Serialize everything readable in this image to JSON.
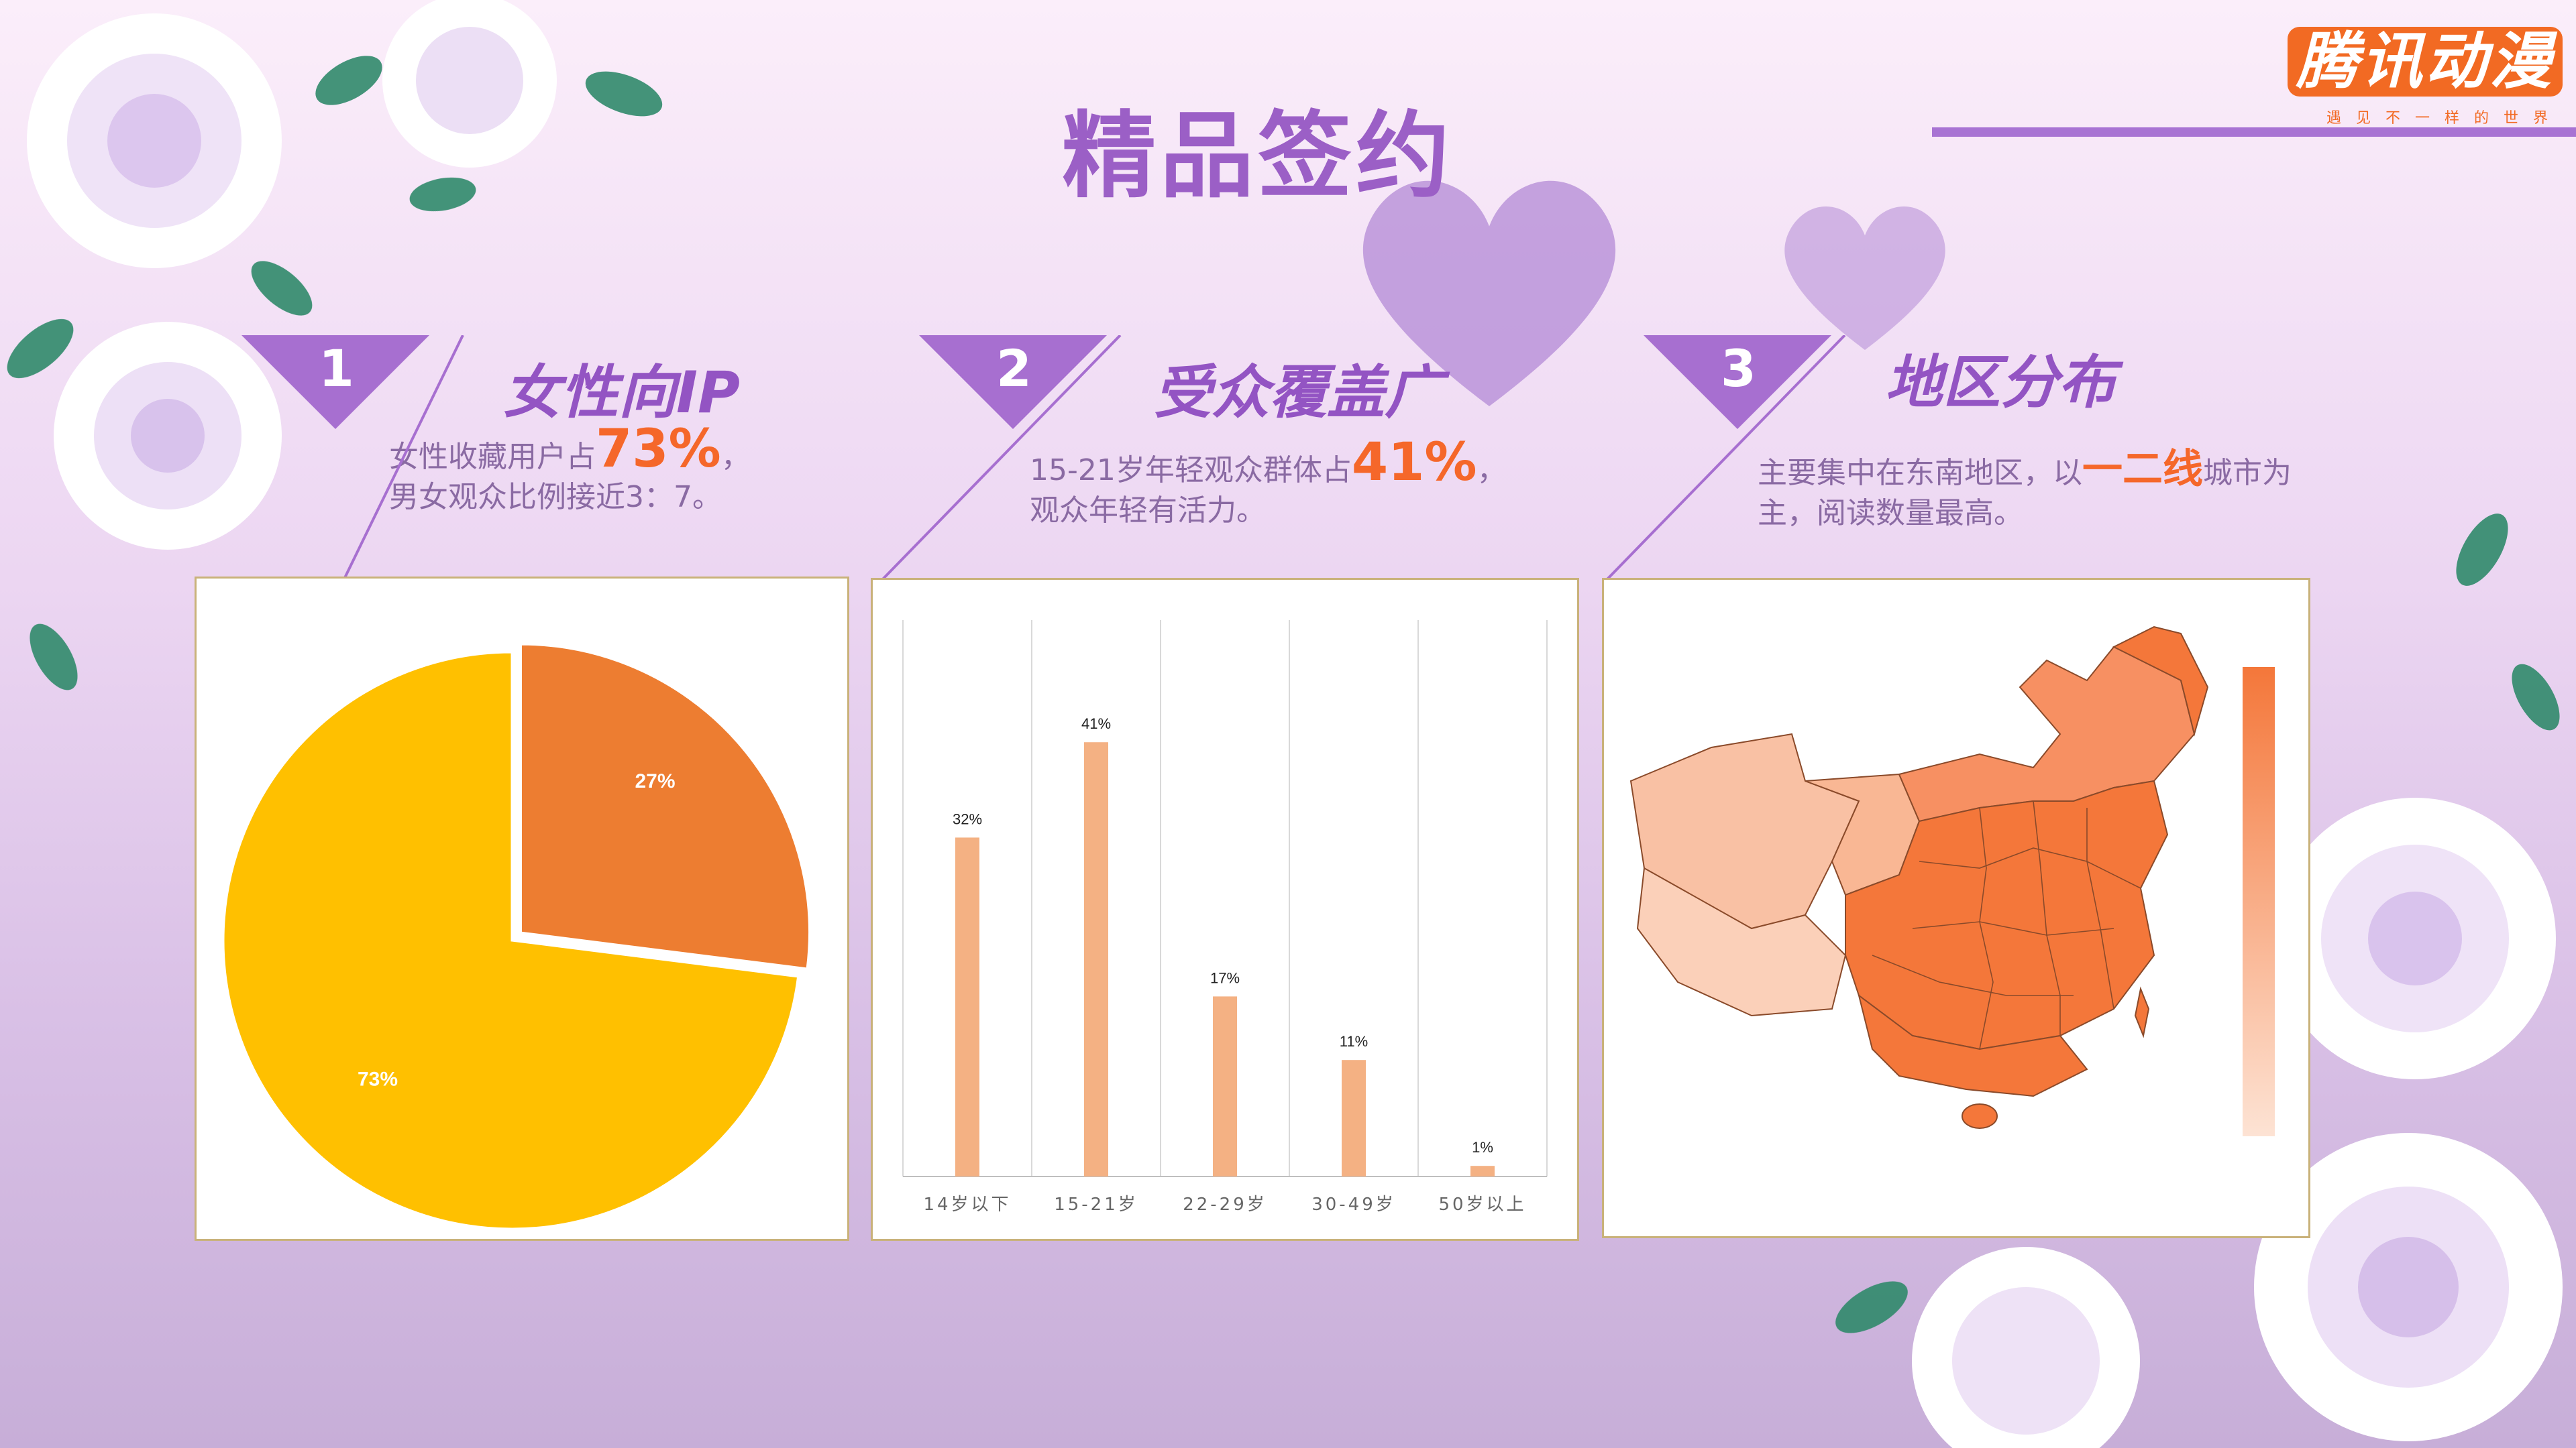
{
  "title": "精品签约",
  "logo": {
    "name": "腾讯动漫",
    "slogan": "遇见不一样的世界"
  },
  "sections": [
    {
      "number": "1",
      "title": "女性向IP",
      "desc_line1_pre": "女性收藏用户占",
      "desc_line1_hl": "73%",
      "desc_line1_post": "，",
      "desc_line2": "男女观众比例接近3：7。"
    },
    {
      "number": "2",
      "title": "受众覆盖广",
      "desc_line1_pre": "15-21岁年轻观众群体占",
      "desc_line1_hl": "41%",
      "desc_line1_post": "，",
      "desc_line2": "观众年轻有活力。"
    },
    {
      "number": "3",
      "title": "地区分布",
      "desc_line1_pre": "主要集中在东南地区，以",
      "desc_line1_hl": "一二线",
      "desc_line1_post": "城市为",
      "desc_line2": "主，阅读数量最高。"
    }
  ],
  "colors": {
    "accent": "#9b5fc6",
    "highlight": "#f5672a",
    "pie_major": "#ffc000",
    "pie_minor": "#ed7d31",
    "bar": "#f4b183",
    "map": "#f4773a"
  },
  "chart_data": [
    {
      "type": "pie",
      "slices": [
        {
          "value": 27,
          "label": "27%",
          "color": "#ed7d31"
        },
        {
          "value": 73,
          "label": "73%",
          "color": "#ffc000"
        }
      ]
    },
    {
      "type": "bar",
      "categories": [
        "14岁以下",
        "15-21岁",
        "22-29岁",
        "30-49岁",
        "50岁以上"
      ],
      "values": [
        32,
        41,
        17,
        11,
        1
      ],
      "labels": [
        "32%",
        "41%",
        "17%",
        "11%",
        "1%"
      ],
      "ylim": [
        0,
        50
      ],
      "grid": "vertical"
    },
    {
      "type": "heatmap",
      "subject": "China map by region",
      "legend": "right color scale"
    }
  ]
}
